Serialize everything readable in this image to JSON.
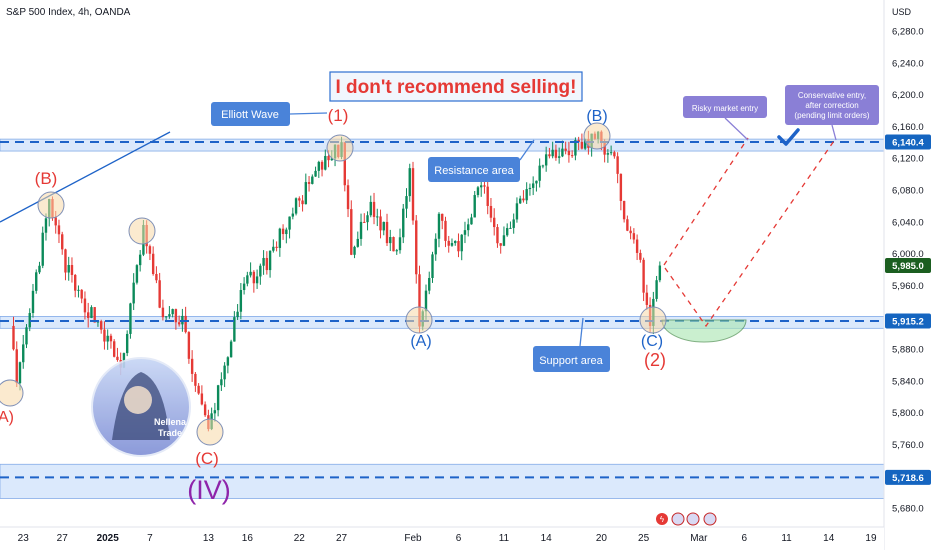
{
  "header": {
    "title": "S&P 500 Index, 4h, OANDA"
  },
  "chart_data": {
    "type": "candlestick",
    "currency": "USD",
    "y_ticks": [
      {
        "label": "6,280.0",
        "value": 6280
      },
      {
        "label": "6,240.0",
        "value": 6240
      },
      {
        "label": "6,200.0",
        "value": 6200
      },
      {
        "label": "6,160.0",
        "value": 6160
      },
      {
        "label": "6,120.0",
        "value": 6120
      },
      {
        "label": "6,080.0",
        "value": 6080
      },
      {
        "label": "6,040.0",
        "value": 6040
      },
      {
        "label": "6,000.0",
        "value": 6000
      },
      {
        "label": "5,960.0",
        "value": 5960
      },
      {
        "label": "5,920.0",
        "value": 5920
      },
      {
        "label": "5,880.0",
        "value": 5880
      },
      {
        "label": "5,840.0",
        "value": 5840
      },
      {
        "label": "5,800.0",
        "value": 5800
      },
      {
        "label": "5,760.0",
        "value": 5760
      },
      {
        "label": "5,720.0",
        "value": 5720
      },
      {
        "label": "5,680.0",
        "value": 5680
      }
    ],
    "price_tags": [
      {
        "label": "6,140.4",
        "value": 6140.4,
        "kind": "line",
        "color": "#1565c0"
      },
      {
        "label": "5,985.0",
        "value": 5985.0,
        "kind": "last",
        "color": "#1b5e20"
      },
      {
        "label": "5,915.2",
        "value": 5915.2,
        "kind": "line",
        "color": "#1565c0"
      },
      {
        "label": "5,718.6",
        "value": 5718.6,
        "kind": "line",
        "color": "#1565c0"
      }
    ],
    "x_ticks": [
      {
        "label": "23",
        "bar": 5,
        "bold": false
      },
      {
        "label": "27",
        "bar": 17,
        "bold": false
      },
      {
        "label": "2025",
        "bar": 31,
        "bold": true
      },
      {
        "label": "7",
        "bar": 44,
        "bold": false
      },
      {
        "label": "13",
        "bar": 62,
        "bold": false
      },
      {
        "label": "16",
        "bar": 74,
        "bold": false
      },
      {
        "label": "22",
        "bar": 90,
        "bold": false
      },
      {
        "label": "27",
        "bar": 103,
        "bold": false
      },
      {
        "label": "Feb",
        "bar": 125,
        "bold": false
      },
      {
        "label": "6",
        "bar": 139,
        "bold": false
      },
      {
        "label": "11",
        "bar": 153,
        "bold": false
      },
      {
        "label": "14",
        "bar": 166,
        "bold": false
      },
      {
        "label": "20",
        "bar": 183,
        "bold": false
      },
      {
        "label": "25",
        "bar": 196,
        "bold": false
      },
      {
        "label": "Mar",
        "bar": 213,
        "bold": false
      },
      {
        "label": "6",
        "bar": 227,
        "bold": false
      },
      {
        "label": "11",
        "bar": 240,
        "bold": false
      },
      {
        "label": "14",
        "bar": 253,
        "bold": false
      },
      {
        "label": "19",
        "bar": 266,
        "bold": false
      }
    ],
    "pivots": [
      {
        "bar": 1,
        "price": 5920
      },
      {
        "bar": 3,
        "price": 5830
      },
      {
        "bar": 13,
        "price": 6062
      },
      {
        "bar": 18,
        "price": 5985
      },
      {
        "bar": 22,
        "price": 5945
      },
      {
        "bar": 28,
        "price": 5915
      },
      {
        "bar": 35,
        "price": 5855
      },
      {
        "bar": 42,
        "price": 6030
      },
      {
        "bar": 48,
        "price": 5920
      },
      {
        "bar": 54,
        "price": 5920
      },
      {
        "bar": 58,
        "price": 5830
      },
      {
        "bar": 62,
        "price": 5778
      },
      {
        "bar": 67,
        "price": 5860
      },
      {
        "bar": 73,
        "price": 5960
      },
      {
        "bar": 80,
        "price": 5990
      },
      {
        "bar": 87,
        "price": 6045
      },
      {
        "bar": 95,
        "price": 6100
      },
      {
        "bar": 103,
        "price": 6135
      },
      {
        "bar": 106,
        "price": 6000
      },
      {
        "bar": 112,
        "price": 6060
      },
      {
        "bar": 120,
        "price": 6000
      },
      {
        "bar": 124,
        "price": 6110
      },
      {
        "bar": 127,
        "price": 5915
      },
      {
        "bar": 133,
        "price": 6040
      },
      {
        "bar": 139,
        "price": 6000
      },
      {
        "bar": 146,
        "price": 6090
      },
      {
        "bar": 152,
        "price": 6010
      },
      {
        "bar": 158,
        "price": 6070
      },
      {
        "bar": 166,
        "price": 6120
      },
      {
        "bar": 176,
        "price": 6135
      },
      {
        "bar": 182,
        "price": 6145
      },
      {
        "bar": 187,
        "price": 6115
      },
      {
        "bar": 190,
        "price": 6050
      },
      {
        "bar": 195,
        "price": 5985
      },
      {
        "bar": 198,
        "price": 5915
      },
      {
        "bar": 201,
        "price": 5985
      }
    ]
  },
  "annotations": {
    "headline": "I don't recommend selling!",
    "callouts": [
      {
        "id": "elliott",
        "text": "Elliott Wave",
        "style": "blue"
      },
      {
        "id": "resistance",
        "text": "Resistance area",
        "style": "blue"
      },
      {
        "id": "support",
        "text": "Support area",
        "style": "blue"
      },
      {
        "id": "risky",
        "text": "Risky market entry",
        "style": "purple"
      },
      {
        "id": "conservative",
        "lines": [
          "Conservative entry,",
          "after correction",
          "(pending limit orders)"
        ],
        "style": "purple"
      }
    ],
    "wave_labels": [
      {
        "text": "(B)",
        "color": "#e53935"
      },
      {
        "text": "(1)",
        "color": "#e53935"
      },
      {
        "text": "(B)",
        "color": "#1e63c8"
      },
      {
        "text": "(A)",
        "color": "#1e63c8"
      },
      {
        "text": "(C)",
        "color": "#1e63c8"
      },
      {
        "text": "(2)",
        "color": "#e53935"
      },
      {
        "text": "(C)",
        "color": "#e53935"
      },
      {
        "text": "(IV)",
        "color": "#8e24aa"
      },
      {
        "text": "A)",
        "color": "#e53935"
      }
    ],
    "logo_text": [
      "Nellena",
      "Trade"
    ]
  },
  "colors": {
    "up": "#0b8a5a",
    "down": "#e53935",
    "band": "#cfe2fb",
    "accent_blue": "#1e63c8",
    "callout_blue": "#4a83d9",
    "callout_purple": "#8a7fd6"
  }
}
